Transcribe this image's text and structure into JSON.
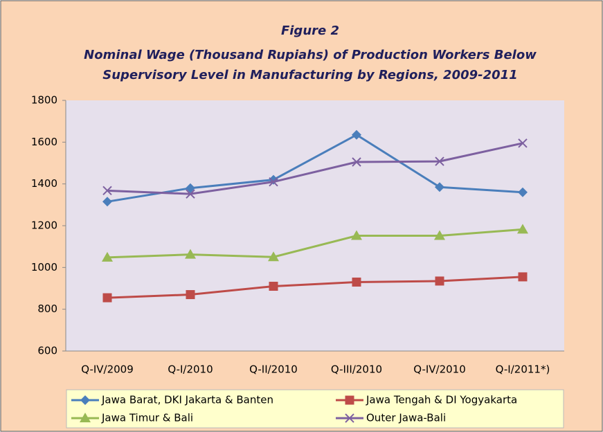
{
  "chart_data": {
    "type": "line",
    "title": [
      "Figure 2",
      "Nominal Wage (Thousand Rupiahs) of Production Workers Below",
      "Supervisory Level  in Manufacturing by Regions, 2009-2011"
    ],
    "categories": [
      "Q-IV/2009",
      "Q-I/2010",
      "Q-II/2010",
      "Q-III/2010",
      "Q-IV/2010",
      "Q-I/2011*)"
    ],
    "series": [
      {
        "name": "Jawa Barat, DKI Jakarta & Banten",
        "color": "#4a7ebb",
        "marker": "diamond",
        "values": [
          1315,
          1380,
          1420,
          1635,
          1385,
          1360
        ]
      },
      {
        "name": "Jawa Tengah & DI Yogyakarta",
        "color": "#be4b48",
        "marker": "square",
        "values": [
          855,
          870,
          910,
          930,
          935,
          955
        ]
      },
      {
        "name": "Jawa Timur & Bali",
        "color": "#98b954",
        "marker": "triangle",
        "values": [
          1048,
          1062,
          1050,
          1152,
          1152,
          1182
        ]
      },
      {
        "name": "Outer Jawa-Bali",
        "color": "#7d60a0",
        "marker": "x",
        "values": [
          1368,
          1352,
          1410,
          1505,
          1508,
          1595
        ]
      }
    ],
    "ylim": [
      600,
      1800
    ],
    "yticks": [
      600,
      800,
      1000,
      1200,
      1400,
      1600,
      1800
    ],
    "grid": false,
    "legend": "bottom"
  }
}
